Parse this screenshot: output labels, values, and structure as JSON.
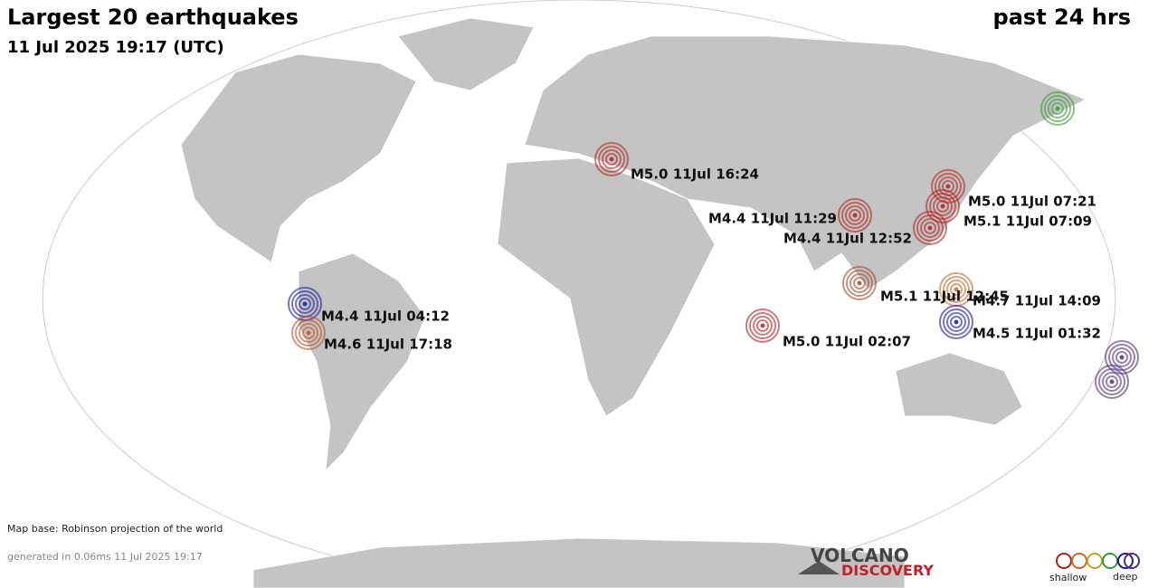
{
  "header": {
    "title": "Largest 20 earthquakes",
    "subtitle": "11 Jul 2025 19:17 (UTC)",
    "period": "past 24 hrs"
  },
  "quakes": [
    {
      "label": "M5.0 11Jul 16:24",
      "color": "#b22222"
    },
    {
      "label": "M5.0 11Jul 07:21",
      "color": "#b22222"
    },
    {
      "label": "M4.4 11Jul 11:29",
      "color": "#b22222"
    },
    {
      "label": "M5.1 11Jul 07:09",
      "color": "#b22222"
    },
    {
      "label": "M4.4 11Jul 12:52",
      "color": "#b22222"
    },
    {
      "label": "M4.4 11Jul 04:12",
      "color": "#1a1aa0"
    },
    {
      "label": "M4.6 11Jul 17:18",
      "color": "#c0502a"
    },
    {
      "label": "M5.1 11Jul 12:45",
      "color": "#a0482a"
    },
    {
      "label": "M4.7 11Jul 14:09",
      "color": "#c86a2a"
    },
    {
      "label": "M5.0 11Jul 02:07",
      "color": "#b22222"
    },
    {
      "label": "M4.5 11Jul 01:32",
      "color": "#1a1aa0"
    }
  ],
  "footer": {
    "map_base": "Map base: Robinson projection of the world",
    "generated": "generated in 0.06ms 11 Jul 2025 19:17"
  },
  "logo": {
    "line1": "VOLCANO",
    "line2": "DISCOVERY"
  },
  "legend": {
    "shallow": "shallow",
    "deep": "deep"
  }
}
